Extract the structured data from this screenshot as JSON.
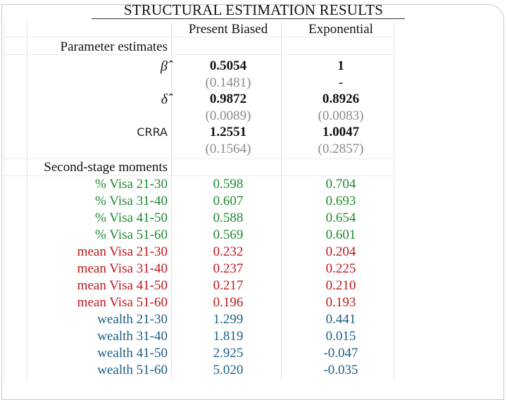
{
  "title": "STRUCTURAL ESTIMATION RESULTS",
  "columns": [
    "Present Biased",
    "Exponential"
  ],
  "param_header": "Parameter estimates",
  "params": [
    {
      "label": "β̂",
      "pb": "0.5054",
      "ex": "1"
    },
    {
      "label": "",
      "pb": "(0.1481)",
      "ex": "-"
    },
    {
      "label": "δ̂",
      "pb": "0.9872",
      "ex": "0.8926"
    },
    {
      "label": "",
      "pb": "(0.0089)",
      "ex": "(0.0083)"
    },
    {
      "label": "CRRA",
      "pb": "1.2551",
      "ex": "1.0047"
    },
    {
      "label": "",
      "pb": "(0.1564)",
      "ex": "(0.2857)"
    }
  ],
  "moments_header": "Second-stage moments",
  "moments": [
    {
      "label": "% Visa 21-30",
      "pb": "0.598",
      "ex": "0.704"
    },
    {
      "label": "% Visa 31-40",
      "pb": "0.607",
      "ex": "0.693"
    },
    {
      "label": "% Visa 41-50",
      "pb": "0.588",
      "ex": "0.654"
    },
    {
      "label": "% Visa 51-60",
      "pb": "0.569",
      "ex": "0.601"
    },
    {
      "label": "mean Visa 21-30",
      "pb": "0.232",
      "ex": "0.204"
    },
    {
      "label": "mean Visa 31-40",
      "pb": "0.237",
      "ex": "0.225"
    },
    {
      "label": "mean Visa 41-50",
      "pb": "0.217",
      "ex": "0.210"
    },
    {
      "label": "mean Visa 51-60",
      "pb": "0.196",
      "ex": "0.193"
    },
    {
      "label": "wealth 21-30",
      "pb": "1.299",
      "ex": "0.441"
    },
    {
      "label": "wealth 31-40",
      "pb": "1.819",
      "ex": "0.015"
    },
    {
      "label": "wealth 41-50",
      "pb": "2.925",
      "ex": "-0.047"
    },
    {
      "label": "wealth 51-60",
      "pb": "5.020",
      "ex": "-0.035"
    }
  ],
  "colors": {
    "pct_visa": "#1e8a2e",
    "mean_visa": "#c0161c",
    "wealth": "#1a5f86",
    "std_error": "#8a8a8a"
  }
}
